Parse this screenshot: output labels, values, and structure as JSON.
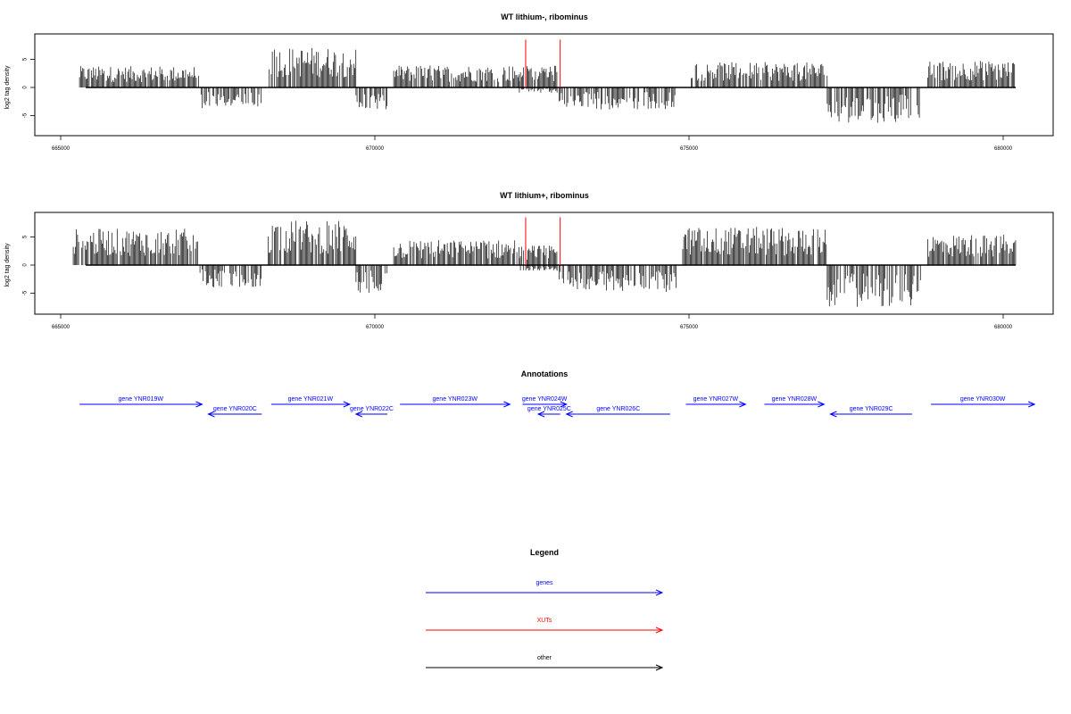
{
  "chart_data": [
    {
      "type": "bar",
      "title": "WT lithium-, ribominus",
      "ylabel": "log2 tag density",
      "xlim": [
        665000,
        680200
      ],
      "ylim": [
        -8.5,
        9.0
      ],
      "x_ticks": [
        "665000",
        "670000",
        "675000",
        "680000"
      ],
      "y_ticks": [
        "5",
        "0",
        "-5"
      ],
      "density_segments": [
        {
          "start": 665300,
          "end": 667200,
          "y_max": 3.8,
          "y_min": 0
        },
        {
          "start": 667200,
          "end": 668200,
          "y_max": 0,
          "y_min": -3.8
        },
        {
          "start": 668300,
          "end": 669700,
          "y_max": 7.2,
          "y_min": 0
        },
        {
          "start": 669700,
          "end": 670200,
          "y_max": 0,
          "y_min": -4.0
        },
        {
          "start": 670300,
          "end": 672300,
          "y_max": 4.0,
          "y_min": 0
        },
        {
          "start": 672300,
          "end": 672900,
          "y_max": 4.0,
          "y_min": -1.0
        },
        {
          "start": 672900,
          "end": 674800,
          "y_max": 0,
          "y_min": -4.0
        },
        {
          "start": 675000,
          "end": 677200,
          "y_max": 4.5,
          "y_min": 0
        },
        {
          "start": 677200,
          "end": 678700,
          "y_max": 0,
          "y_min": -6.3
        },
        {
          "start": 678800,
          "end": 680200,
          "y_max": 4.8,
          "y_min": 0
        }
      ],
      "markers": [
        {
          "x": 672400,
          "y": 8.5
        },
        {
          "x": 672950,
          "y": 8.5
        }
      ]
    },
    {
      "type": "bar",
      "title": "WT lithium+, ribominus",
      "ylabel": "log2 tag density",
      "xlim": [
        665000,
        680200
      ],
      "ylim": [
        -8.5,
        9.0
      ],
      "x_ticks": [
        "665000",
        "670000",
        "675000",
        "680000"
      ],
      "y_ticks": [
        "5",
        "0",
        "-5"
      ],
      "density_segments": [
        {
          "start": 665200,
          "end": 667200,
          "y_max": 6.5,
          "y_min": 0
        },
        {
          "start": 667200,
          "end": 668200,
          "y_max": 0,
          "y_min": -4.0
        },
        {
          "start": 668300,
          "end": 669700,
          "y_max": 8.0,
          "y_min": 0
        },
        {
          "start": 669700,
          "end": 670200,
          "y_max": 0,
          "y_min": -5.0
        },
        {
          "start": 670300,
          "end": 672300,
          "y_max": 4.5,
          "y_min": 0
        },
        {
          "start": 672300,
          "end": 672900,
          "y_max": 3.5,
          "y_min": -1.0
        },
        {
          "start": 672900,
          "end": 674800,
          "y_max": 0,
          "y_min": -4.8
        },
        {
          "start": 674900,
          "end": 677200,
          "y_max": 6.8,
          "y_min": 0
        },
        {
          "start": 677200,
          "end": 678700,
          "y_max": 0,
          "y_min": -7.5
        },
        {
          "start": 678800,
          "end": 680200,
          "y_max": 5.5,
          "y_min": 0
        }
      ],
      "markers": [
        {
          "x": 672400,
          "y": 8.5
        },
        {
          "x": 672950,
          "y": 8.5
        }
      ]
    }
  ],
  "annotations": {
    "title": "Annotations",
    "genes": [
      {
        "label": "gene YNR019W",
        "start": 665300,
        "end": 667250,
        "strand": "+"
      },
      {
        "label": "gene YNR020C",
        "start": 667350,
        "end": 668200,
        "strand": "-"
      },
      {
        "label": "gene YNR021W",
        "start": 668350,
        "end": 669600,
        "strand": "+"
      },
      {
        "label": "gene YNR022C",
        "start": 669700,
        "end": 670200,
        "strand": "-"
      },
      {
        "label": "gene YNR023W",
        "start": 670400,
        "end": 672150,
        "strand": "+"
      },
      {
        "label": "gene YNR024W",
        "start": 672350,
        "end": 673050,
        "strand": "+"
      },
      {
        "label": "gene YNR025C",
        "start": 672600,
        "end": 672950,
        "strand": "-"
      },
      {
        "label": "gene YNR026C",
        "start": 673050,
        "end": 674700,
        "strand": "-"
      },
      {
        "label": "gene YNR027W",
        "start": 674950,
        "end": 675900,
        "strand": "+"
      },
      {
        "label": "gene YNR028W",
        "start": 676200,
        "end": 677150,
        "strand": "+"
      },
      {
        "label": "gene YNR029C",
        "start": 677250,
        "end": 678550,
        "strand": "-"
      },
      {
        "label": "gene YNR030W",
        "start": 678850,
        "end": 680500,
        "strand": "+"
      }
    ]
  },
  "legend": {
    "title": "Legend",
    "items": [
      {
        "label": "genes",
        "color": "#0000ff"
      },
      {
        "label": "XUTs",
        "color": "#ff0000"
      },
      {
        "label": "other",
        "color": "#000000"
      }
    ]
  },
  "colors": {
    "gene": "#0000ff",
    "xut": "#ff0000",
    "density": "#000000"
  }
}
